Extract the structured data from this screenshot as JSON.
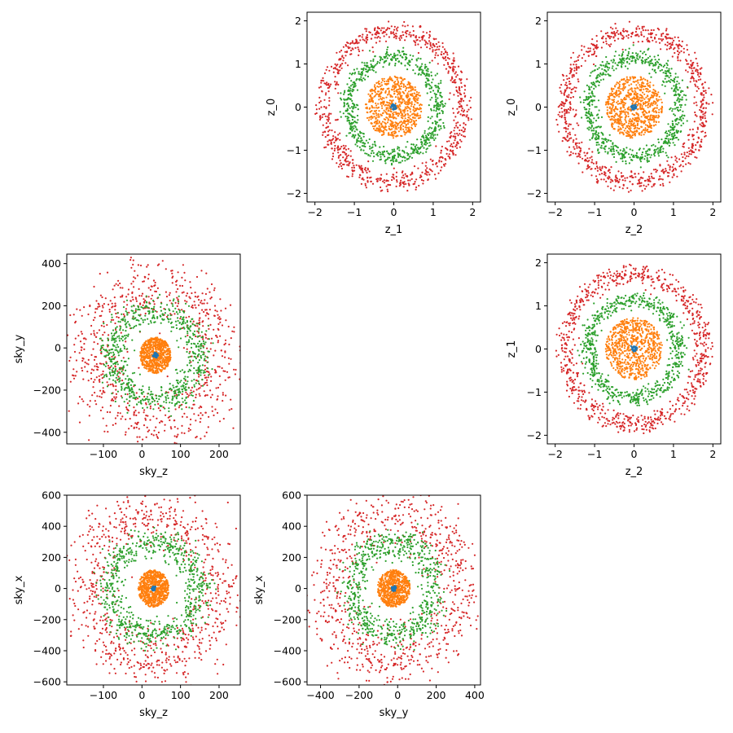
{
  "figure": {
    "colors": {
      "ring0": "#1f77b4",
      "ring1": "#ff7f0e",
      "ring2": "#2ca02c",
      "ring3": "#d62728"
    }
  },
  "chart_data": [
    {
      "type": "scatter",
      "position": "row1-col2",
      "xlabel": "z_1",
      "ylabel": "z_0",
      "xlim": [
        -2.2,
        2.2
      ],
      "ylim": [
        -2.2,
        2.2
      ],
      "xticks": [
        -2,
        -1,
        0,
        1,
        2
      ],
      "yticks": [
        -2,
        -1,
        0,
        1,
        2
      ],
      "tick_labels_x": [
        "−2",
        "−1",
        "0",
        "1",
        "2"
      ],
      "tick_labels_y": [
        "−2",
        "−1",
        "0",
        "1",
        "2"
      ],
      "center": [
        0,
        0
      ],
      "rings": [
        {
          "color": "#1f77b4",
          "radius": 0.05,
          "spread": 0.03,
          "count": 40
        },
        {
          "color": "#ff7f0e",
          "radius": 0.45,
          "spread": 0.28,
          "count": 700,
          "fill": true,
          "rmax": 0.72
        },
        {
          "color": "#2ca02c",
          "radius": 1.15,
          "spread": 0.2,
          "count": 700
        },
        {
          "color": "#d62728",
          "radius": 1.75,
          "spread": 0.24,
          "count": 800
        }
      ]
    },
    {
      "type": "scatter",
      "position": "row1-col3",
      "xlabel": "z_2",
      "ylabel": "z_0",
      "xlim": [
        -2.2,
        2.2
      ],
      "ylim": [
        -2.2,
        2.2
      ],
      "xticks": [
        -2,
        -1,
        0,
        1,
        2
      ],
      "yticks": [
        -2,
        -1,
        0,
        1,
        2
      ],
      "tick_labels_x": [
        "−2",
        "−1",
        "0",
        "1",
        "2"
      ],
      "tick_labels_y": [
        "−2",
        "−1",
        "0",
        "1",
        "2"
      ],
      "center": [
        0,
        0
      ],
      "rings": [
        {
          "color": "#1f77b4",
          "radius": 0.05,
          "spread": 0.03,
          "count": 40
        },
        {
          "color": "#ff7f0e",
          "radius": 0.45,
          "spread": 0.28,
          "count": 700,
          "fill": true,
          "rmax": 0.72
        },
        {
          "color": "#2ca02c",
          "radius": 1.15,
          "spread": 0.2,
          "count": 700
        },
        {
          "color": "#d62728",
          "radius": 1.75,
          "spread": 0.24,
          "count": 800
        }
      ]
    },
    {
      "type": "scatter",
      "position": "row2-col1",
      "xlabel": "sky_z",
      "ylabel": "sky_y",
      "xlim": [
        -195,
        255
      ],
      "ylim": [
        -455,
        445
      ],
      "xticks": [
        -100,
        0,
        100,
        200
      ],
      "yticks": [
        -400,
        -200,
        0,
        200,
        400
      ],
      "tick_labels_x": [
        "−100",
        "0",
        "100",
        "200"
      ],
      "tick_labels_y": [
        "−400",
        "−200",
        "0",
        "200",
        "400"
      ],
      "center": [
        35,
        -35
      ],
      "rings": [
        {
          "color": "#1f77b4",
          "radius": [
            4,
            8
          ],
          "spread": 0.4,
          "count": 40
        },
        {
          "color": "#ff7f0e",
          "radius": [
            40,
            85
          ],
          "spread": 0.3,
          "count": 700,
          "fill": true,
          "rmax": 1.0
        },
        {
          "color": "#2ca02c",
          "radius": [
            115,
            210
          ],
          "spread": 0.16,
          "count": 700
        },
        {
          "color": "#d62728",
          "radius": [
            165,
            330
          ],
          "spread": 0.22,
          "count": 800
        }
      ]
    },
    {
      "type": "scatter",
      "position": "row2-col3",
      "xlabel": "z_2",
      "ylabel": "z_1",
      "xlim": [
        -2.2,
        2.2
      ],
      "ylim": [
        -2.2,
        2.2
      ],
      "xticks": [
        -2,
        -1,
        0,
        1,
        2
      ],
      "yticks": [
        -2,
        -1,
        0,
        1,
        2
      ],
      "tick_labels_x": [
        "−2",
        "−1",
        "0",
        "1",
        "2"
      ],
      "tick_labels_y": [
        "−2",
        "−1",
        "0",
        "1",
        "2"
      ],
      "center": [
        0,
        0
      ],
      "rings": [
        {
          "color": "#1f77b4",
          "radius": 0.05,
          "spread": 0.03,
          "count": 40
        },
        {
          "color": "#ff7f0e",
          "radius": 0.45,
          "spread": 0.28,
          "count": 700,
          "fill": true,
          "rmax": 0.72
        },
        {
          "color": "#2ca02c",
          "radius": 1.15,
          "spread": 0.2,
          "count": 700
        },
        {
          "color": "#d62728",
          "radius": 1.75,
          "spread": 0.24,
          "count": 800
        }
      ]
    },
    {
      "type": "scatter",
      "position": "row3-col1",
      "xlabel": "sky_z",
      "ylabel": "sky_x",
      "xlim": [
        -195,
        255
      ],
      "ylim": [
        -620,
        600
      ],
      "xticks": [
        -100,
        0,
        100,
        200
      ],
      "yticks": [
        -600,
        -400,
        -200,
        0,
        200,
        400,
        600
      ],
      "tick_labels_x": [
        "−100",
        "0",
        "100",
        "200"
      ],
      "tick_labels_y": [
        "−600",
        "−400",
        "−200",
        "0",
        "200",
        "400",
        "600"
      ],
      "center": [
        30,
        0
      ],
      "rings": [
        {
          "color": "#1f77b4",
          "radius": [
            4,
            12
          ],
          "spread": 0.4,
          "count": 40
        },
        {
          "color": "#ff7f0e",
          "radius": [
            40,
            120
          ],
          "spread": 0.3,
          "count": 700,
          "fill": true,
          "rmax": 1.0
        },
        {
          "color": "#2ca02c",
          "radius": [
            115,
            300
          ],
          "spread": 0.16,
          "count": 700
        },
        {
          "color": "#d62728",
          "radius": [
            175,
            470
          ],
          "spread": 0.2,
          "count": 800
        }
      ]
    },
    {
      "type": "scatter",
      "position": "row3-col2",
      "xlabel": "sky_y",
      "ylabel": "sky_x",
      "xlim": [
        -470,
        430
      ],
      "ylim": [
        -620,
        600
      ],
      "xticks": [
        -400,
        -200,
        0,
        200,
        400
      ],
      "yticks": [
        -600,
        -400,
        -200,
        0,
        200,
        400,
        600
      ],
      "tick_labels_x": [
        "−400",
        "−200",
        "0",
        "200",
        "400"
      ],
      "tick_labels_y": [
        "−600",
        "−400",
        "−200",
        "0",
        "200",
        "400",
        "600"
      ],
      "center": [
        -20,
        0
      ],
      "rings": [
        {
          "color": "#1f77b4",
          "radius": [
            8,
            12
          ],
          "spread": 0.4,
          "count": 40
        },
        {
          "color": "#ff7f0e",
          "radius": [
            85,
            120
          ],
          "spread": 0.3,
          "count": 700,
          "fill": true,
          "rmax": 1.0
        },
        {
          "color": "#2ca02c",
          "radius": [
            210,
            300
          ],
          "spread": 0.16,
          "count": 700
        },
        {
          "color": "#d62728",
          "radius": [
            340,
            470
          ],
          "spread": 0.2,
          "count": 800
        }
      ]
    }
  ]
}
